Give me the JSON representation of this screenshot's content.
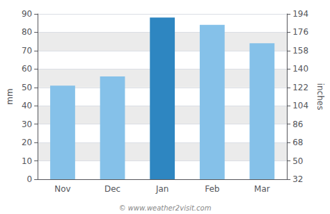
{
  "chart_data": {
    "type": "bar",
    "categories": [
      "Nov",
      "Dec",
      "Jan",
      "Feb",
      "Mar"
    ],
    "values": [
      51,
      56,
      88,
      84,
      74
    ],
    "colors": [
      "#85c1e9",
      "#85c1e9",
      "#2e86c1",
      "#85c1e9",
      "#85c1e9"
    ],
    "ylabel": "mm",
    "ylim": [
      0,
      90
    ],
    "yticks": [
      0,
      10,
      20,
      30,
      40,
      50,
      60,
      70,
      80,
      90
    ],
    "y2label": "inches",
    "y2lim": [
      32,
      194
    ],
    "y2ticks": [
      32,
      50,
      68,
      86,
      104,
      122,
      140,
      158,
      176,
      194
    ],
    "grid": true,
    "annotations": [
      "© www.weather2visit.com"
    ]
  }
}
